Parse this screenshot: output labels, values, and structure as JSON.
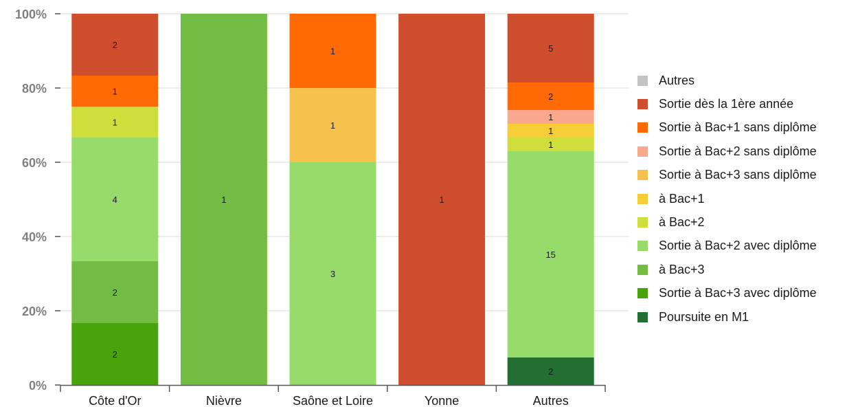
{
  "chart_data": {
    "type": "bar",
    "stacked": true,
    "normalized": true,
    "categories": [
      "Côte d'Or",
      "Nièvre",
      "Saône et Loire",
      "Yonne",
      "Autres"
    ],
    "ylim": [
      0,
      100
    ],
    "yticks": [
      "0%",
      "20%",
      "40%",
      "60%",
      "80%",
      "100%"
    ],
    "ytick_values": [
      0,
      20,
      40,
      60,
      80,
      100
    ],
    "grid": true,
    "legend_position": "right",
    "series": [
      {
        "name": "Poursuite en M1",
        "color": "#236f32",
        "values": [
          0,
          0,
          0,
          0,
          2
        ]
      },
      {
        "name": "Sortie à Bac+3 avec diplôme",
        "color": "#49a30b",
        "values": [
          2,
          0,
          0,
          0,
          0
        ]
      },
      {
        "name": "à Bac+3",
        "color": "#74bd45",
        "values": [
          2,
          1,
          0,
          0,
          0
        ]
      },
      {
        "name": "Sortie à Bac+2 avec diplôme",
        "color": "#97db6b",
        "values": [
          4,
          0,
          3,
          0,
          15
        ]
      },
      {
        "name": "à Bac+2",
        "color": "#d0de3c",
        "values": [
          1,
          0,
          0,
          0,
          1
        ]
      },
      {
        "name": "à Bac+1",
        "color": "#f5cd36",
        "values": [
          0,
          0,
          0,
          0,
          1
        ]
      },
      {
        "name": "Sortie à Bac+3 sans diplôme",
        "color": "#f5c04c",
        "values": [
          0,
          0,
          1,
          0,
          0
        ]
      },
      {
        "name": "Sortie à Bac+2 sans diplôme",
        "color": "#fba78d",
        "values": [
          0,
          0,
          0,
          0,
          1
        ]
      },
      {
        "name": "Sortie à Bac+1 sans diplôme",
        "color": "#ff6a06",
        "values": [
          1,
          0,
          1,
          0,
          2
        ]
      },
      {
        "name": "Sortie dès la 1ère année",
        "color": "#cf4e2e",
        "values": [
          2,
          0,
          0,
          1,
          5
        ]
      },
      {
        "name": "Autres",
        "color": "#c4c4c4",
        "values": [
          0,
          0,
          0,
          0,
          0
        ]
      }
    ],
    "legend_order": [
      "Autres",
      "Sortie dès la 1ère année",
      "Sortie à Bac+1 sans diplôme",
      "Sortie à Bac+2 sans diplôme",
      "Sortie à Bac+3 sans diplôme",
      "à Bac+1",
      "à Bac+2",
      "Sortie à Bac+2 avec diplôme",
      "à Bac+3",
      "Sortie à Bac+3 avec diplôme",
      "Poursuite en M1"
    ]
  }
}
